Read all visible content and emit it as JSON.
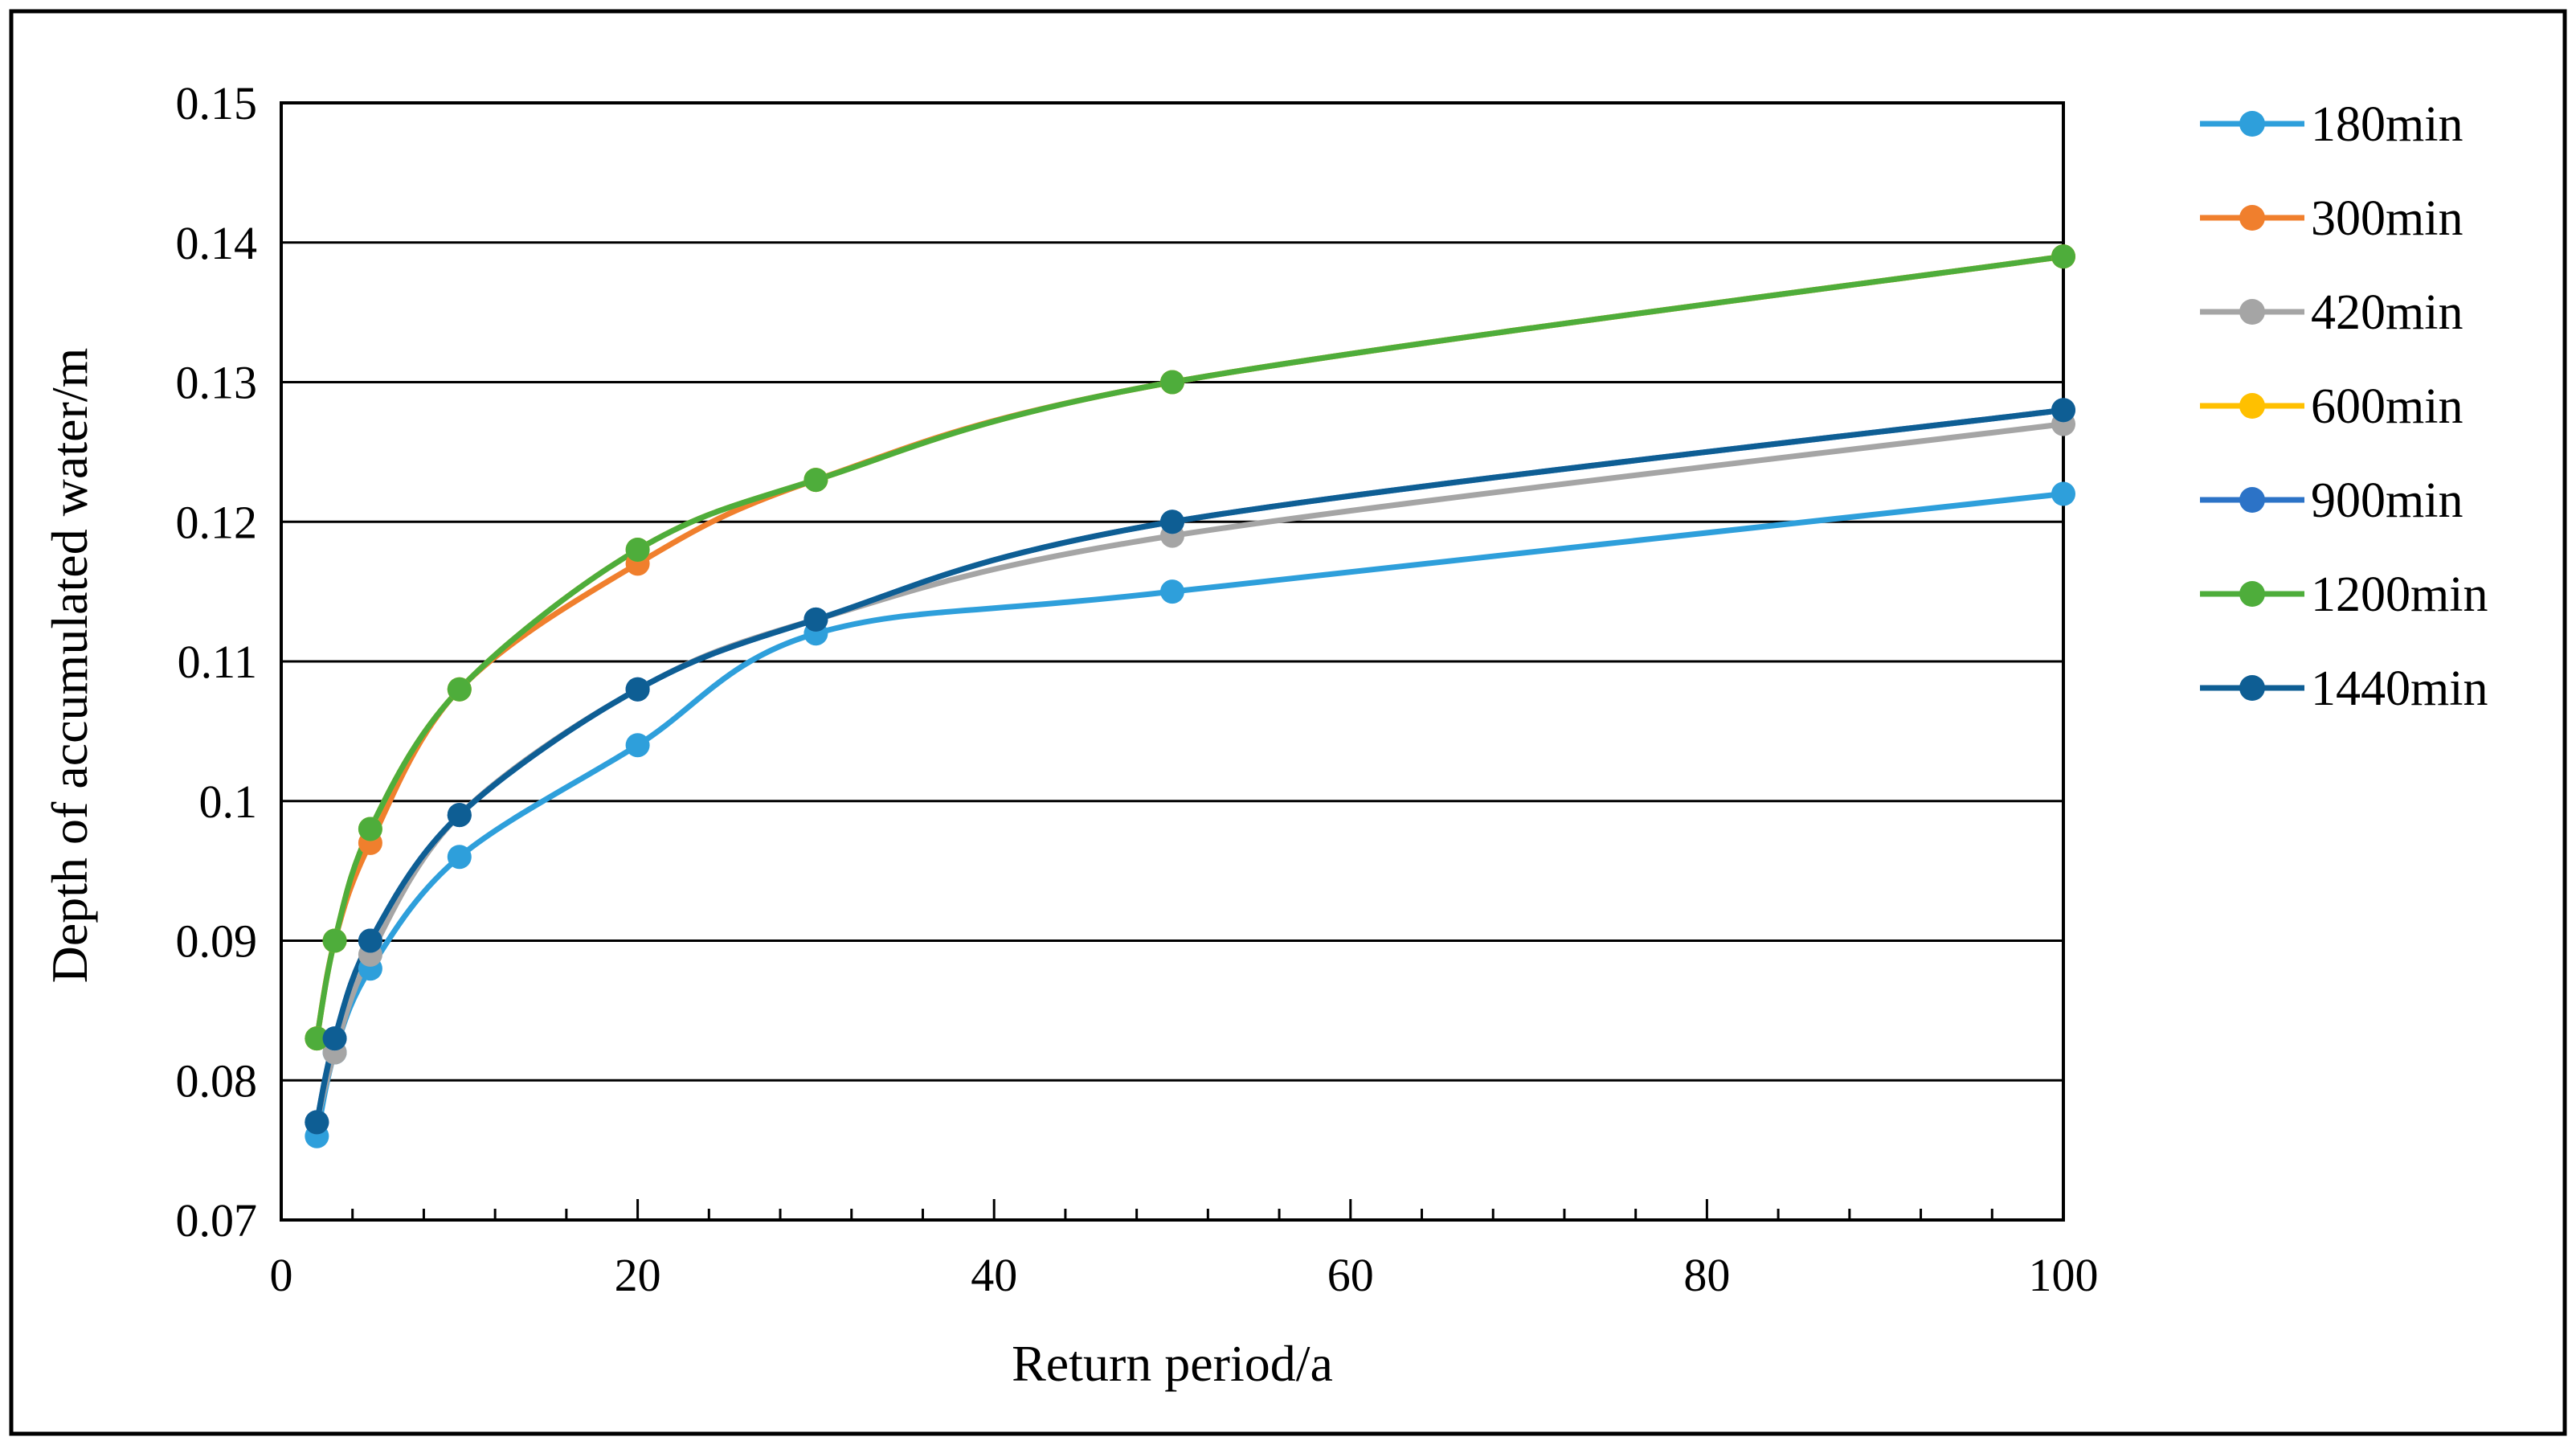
{
  "chart_data": {
    "type": "line",
    "xlabel": "Return period/a",
    "ylabel": "Depth of accumulated water/m",
    "xlim": [
      0,
      100
    ],
    "ylim": [
      0.07,
      0.15
    ],
    "x_ticks": [
      "0",
      "20",
      "40",
      "60",
      "80",
      "100"
    ],
    "y_ticks": [
      "0.07",
      "0.08",
      "0.09",
      "0.1",
      "0.11",
      "0.12",
      "0.13",
      "0.14",
      "0.15"
    ],
    "grid": "horizontal",
    "legend_position": "right",
    "x": [
      2,
      3,
      5,
      10,
      20,
      30,
      50,
      100
    ],
    "series": [
      {
        "name": "180min",
        "color": "#2E9FDB",
        "values": [
          0.076,
          0.082,
          0.088,
          0.096,
          0.104,
          0.112,
          0.115,
          0.122
        ]
      },
      {
        "name": "300min",
        "color": "#F07F2D",
        "values": [
          0.083,
          0.09,
          0.097,
          0.108,
          0.117,
          0.123,
          0.13,
          0.139
        ]
      },
      {
        "name": "420min",
        "color": "#A5A5A5",
        "values": [
          0.077,
          0.082,
          0.089,
          0.099,
          0.108,
          0.113,
          0.119,
          0.127
        ]
      },
      {
        "name": "600min",
        "color": "#FFC000",
        "values": [
          0.083,
          0.09,
          0.098,
          0.108,
          0.118,
          0.123,
          0.13,
          0.139
        ]
      },
      {
        "name": "900min",
        "color": "#2C73C7",
        "values": [
          0.077,
          0.083,
          0.09,
          0.099,
          0.108,
          0.113,
          0.12,
          0.128
        ]
      },
      {
        "name": "1200min",
        "color": "#4EAD3B",
        "values": [
          0.083,
          0.09,
          0.098,
          0.108,
          0.118,
          0.123,
          0.13,
          0.139
        ]
      },
      {
        "name": "1440min",
        "color": "#0E5E94",
        "values": [
          0.077,
          0.083,
          0.09,
          0.099,
          0.108,
          0.113,
          0.12,
          0.128
        ]
      }
    ]
  }
}
